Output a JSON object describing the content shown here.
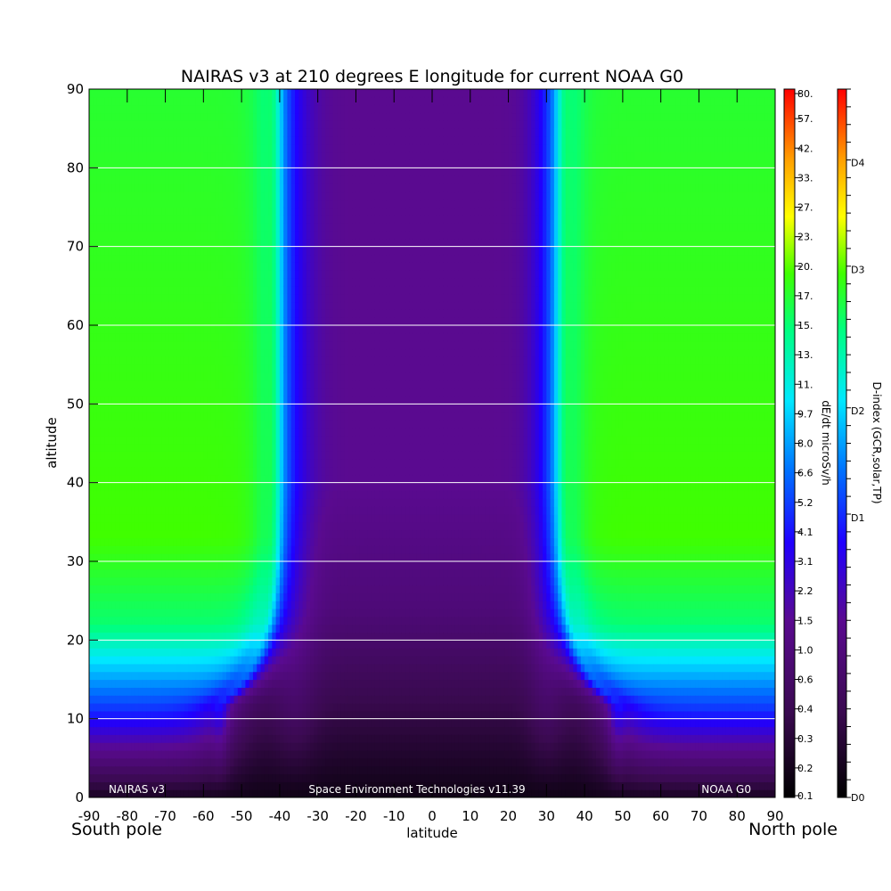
{
  "chart_data": {
    "type": "heatmap",
    "title": "NAIRAS v3 at 210 degrees E longitude for current NOAA G0",
    "xlabel": "latitude",
    "ylabel": "altitude",
    "x_range": [
      -90,
      90
    ],
    "y_range": [
      0,
      90
    ],
    "x_ticks": [
      -90,
      -80,
      -70,
      -60,
      -50,
      -40,
      -30,
      -20,
      -10,
      0,
      10,
      20,
      30,
      40,
      50,
      60,
      70,
      80,
      90
    ],
    "y_ticks": [
      0,
      10,
      20,
      30,
      40,
      50,
      60,
      70,
      80,
      90
    ],
    "y_gridlines": [
      10,
      20,
      30,
      40,
      50,
      60,
      70,
      80
    ],
    "grid": "horizontal white lines at y ticks",
    "corner_labels": {
      "left": "South pole",
      "right": "North pole"
    },
    "footer": {
      "left": "NAIRAS v3",
      "center": "Space Environment Technologies v11.39",
      "right": "NOAA G0"
    },
    "field_description_bands": {
      "equatorial_low_band_lat": [
        -30,
        28
      ],
      "transition_lat_south": -40,
      "transition_lat_north": 33
    },
    "colorbar_dose": {
      "label": "dE/dt microSv/h",
      "tick_labels": [
        "0.1",
        "0.2",
        "0.3",
        "0.4",
        "0.6",
        "1.0",
        "1.5",
        "2.2",
        "3.1",
        "4.1",
        "5.2",
        "6.6",
        "8.0",
        "9.7",
        "11.",
        "13.",
        "15.",
        "17.",
        "20.",
        "23.",
        "27.",
        "33.",
        "42.",
        "57.",
        "80."
      ]
    },
    "colorbar_dindex": {
      "label": "D-index (GCR,solar,TP)",
      "tick_labels": [
        "D0",
        "D1",
        "D2",
        "D3",
        "D4"
      ]
    }
  }
}
